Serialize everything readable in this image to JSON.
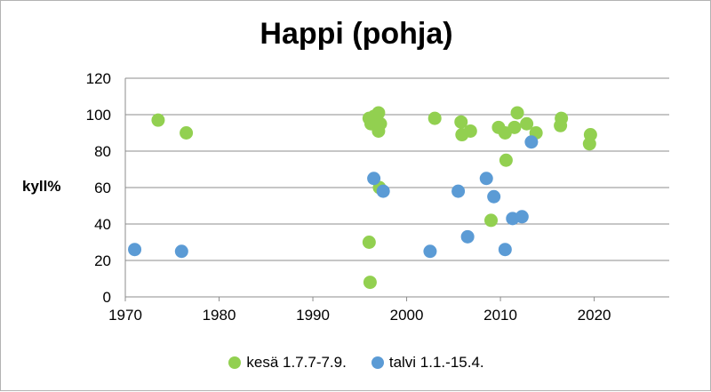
{
  "chart_data": {
    "type": "scatter",
    "title": "Happi (pohja)",
    "xlabel": "",
    "ylabel": "kyll%",
    "xlim": [
      1970,
      2028
    ],
    "ylim": [
      0,
      120
    ],
    "xticks": [
      1970,
      1980,
      1990,
      2000,
      2010,
      2020
    ],
    "yticks": [
      0,
      20,
      40,
      60,
      80,
      100,
      120
    ],
    "grid": "horizontal",
    "legend_position": "bottom",
    "series": [
      {
        "name": "kesä 1.7.7-7.9.",
        "color": "#92d050",
        "points": [
          [
            1973.5,
            97
          ],
          [
            1976.5,
            90
          ],
          [
            1996.0,
            98
          ],
          [
            1996.2,
            95
          ],
          [
            1996.5,
            99
          ],
          [
            1996.8,
            97
          ],
          [
            1997.0,
            101
          ],
          [
            1997.2,
            95
          ],
          [
            1997.0,
            91
          ],
          [
            1997.1,
            60
          ],
          [
            1996.0,
            30
          ],
          [
            1996.1,
            8
          ],
          [
            2003.0,
            98
          ],
          [
            2005.8,
            96
          ],
          [
            2005.9,
            89
          ],
          [
            2006.8,
            91
          ],
          [
            2009.0,
            42
          ],
          [
            2009.8,
            93
          ],
          [
            2010.5,
            90
          ],
          [
            2010.6,
            75
          ],
          [
            2011.5,
            93
          ],
          [
            2011.8,
            101
          ],
          [
            2012.8,
            95
          ],
          [
            2013.8,
            90
          ],
          [
            2016.5,
            98
          ],
          [
            2016.4,
            94
          ],
          [
            2019.6,
            89
          ],
          [
            2019.5,
            84
          ]
        ]
      },
      {
        "name": "talvi 1.1.-15.4.",
        "color": "#5b9bd5",
        "points": [
          [
            1971.0,
            26
          ],
          [
            1976.0,
            25
          ],
          [
            1996.5,
            65
          ],
          [
            1997.5,
            58
          ],
          [
            2002.5,
            25
          ],
          [
            2005.5,
            58
          ],
          [
            2006.5,
            33
          ],
          [
            2008.5,
            65
          ],
          [
            2009.3,
            55
          ],
          [
            2010.5,
            26
          ],
          [
            2011.3,
            43
          ],
          [
            2012.3,
            44
          ],
          [
            2013.3,
            85
          ]
        ]
      }
    ]
  }
}
